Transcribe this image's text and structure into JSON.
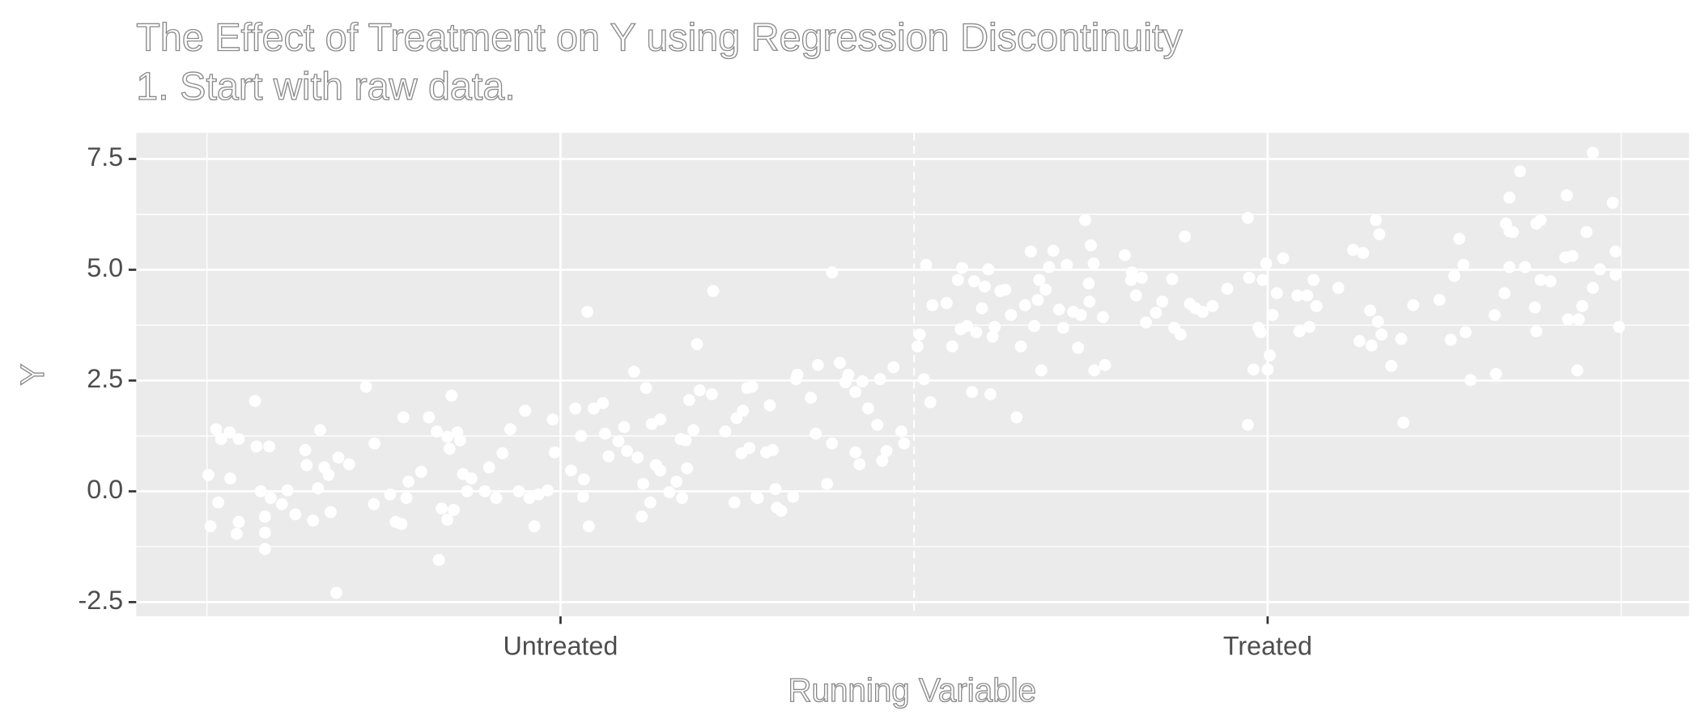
{
  "chart_data": {
    "type": "scatter",
    "title": "The Effect of Treatment on Y using Regression Discontinuity",
    "subtitle": "1. Start with raw data.",
    "x_label": "Running Variable",
    "y_label": "Y",
    "xlim": [
      -1.1,
      1.096
    ],
    "ylim": [
      -2.82,
      8.09
    ],
    "xticks": [
      {
        "value": -0.5,
        "label": "Untreated"
      },
      {
        "value": 0.5,
        "label": "Treated"
      }
    ],
    "yticks": [
      -2.5,
      {
        "value": 0,
        "label": "0.0"
      },
      2.5,
      {
        "value": 5,
        "label": "5.0"
      },
      7.5
    ],
    "x_minor_grid": [
      -1,
      0,
      1
    ],
    "cutoff": 0,
    "grid": true,
    "color": "#ffffff",
    "x": [
      -0.998,
      -0.995,
      -0.987,
      -0.984,
      -0.98,
      -0.968,
      -0.967,
      -0.958,
      -0.955,
      -0.955,
      -0.932,
      -0.93,
      -0.924,
      -0.918,
      -0.918,
      -0.912,
      -0.91,
      -0.918,
      -0.894,
      -0.886,
      -0.875,
      -0.861,
      -0.859,
      -0.85,
      -0.843,
      -0.84,
      -0.834,
      -0.828,
      -0.825,
      -0.817,
      -0.814,
      -0.799,
      -0.775,
      -0.764,
      -0.763,
      -0.741,
      -0.733,
      -0.725,
      -0.722,
      -0.718,
      -0.715,
      -0.697,
      -0.686,
      -0.675,
      -0.672,
      -0.668,
      -0.66,
      -0.657,
      -0.654,
      -0.66,
      -0.651,
      -0.646,
      -0.642,
      -0.638,
      -0.632,
      -0.626,
      -0.607,
      -0.601,
      -0.591,
      -0.582,
      -0.571,
      -0.559,
      -0.55,
      -0.544,
      -0.537,
      -0.531,
      -0.518,
      -0.511,
      -0.508,
      -0.485,
      -0.479,
      -0.471,
      -0.468,
      -0.467,
      -0.462,
      -0.46,
      -0.453,
      -0.44,
      -0.437,
      -0.432,
      -0.418,
      -0.41,
      -0.406,
      -0.396,
      -0.391,
      -0.385,
      -0.383,
      -0.379,
      -0.373,
      -0.371,
      -0.365,
      -0.359,
      -0.359,
      -0.346,
      -0.336,
      -0.33,
      -0.328,
      -0.323,
      -0.321,
      -0.318,
      -0.312,
      -0.307,
      -0.303,
      -0.286,
      -0.284,
      -0.267,
      -0.251,
      -0.254,
      -0.244,
      -0.242,
      -0.236,
      -0.229,
      -0.233,
      -0.223,
      -0.221,
      -0.209,
      -0.204,
      -0.2,
      -0.196,
      -0.194,
      -0.188,
      -0.171,
      -0.167,
      -0.165,
      -0.146,
      -0.136,
      -0.139,
      -0.123,
      -0.116,
      -0.116,
      -0.105,
      -0.097,
      -0.093,
      -0.083,
      -0.083,
      -0.077,
      -0.073,
      -0.065,
      -0.052,
      -0.048,
      -0.045,
      -0.039,
      -0.029,
      -0.018,
      -0.014,
      0.005,
      0.008,
      0.014,
      0.017,
      0.023,
      0.026,
      0.046,
      0.054,
      0.062,
      0.066,
      0.068,
      0.075,
      0.082,
      0.085,
      0.088,
      0.096,
      0.1,
      0.105,
      0.108,
      0.111,
      0.114,
      0.122,
      0.129,
      0.137,
      0.145,
      0.151,
      0.157,
      0.165,
      0.17,
      0.175,
      0.177,
      0.18,
      0.186,
      0.191,
      0.197,
      0.205,
      0.211,
      0.216,
      0.225,
      0.232,
      0.236,
      0.242,
      0.247,
      0.248,
      0.25,
      0.254,
      0.255,
      0.267,
      0.27,
      0.298,
      0.307,
      0.308,
      0.314,
      0.322,
      0.328,
      0.342,
      0.351,
      0.365,
      0.368,
      0.377,
      0.383,
      0.39,
      0.398,
      0.408,
      0.422,
      0.443,
      0.472,
      0.472,
      0.474,
      0.48,
      0.487,
      0.49,
      0.493,
      0.498,
      0.5,
      0.503,
      0.507,
      0.513,
      0.522,
      0.542,
      0.545,
      0.556,
      0.559,
      0.565,
      0.569,
      0.6,
      0.621,
      0.63,
      0.635,
      0.645,
      0.647,
      0.653,
      0.656,
      0.658,
      0.661,
      0.675,
      0.689,
      0.692,
      0.706,
      0.743,
      0.759,
      0.764,
      0.771,
      0.777,
      0.78,
      0.787,
      0.821,
      0.823,
      0.835,
      0.837,
      0.842,
      0.842,
      0.842,
      0.847,
      0.857,
      0.864,
      0.878,
      0.88,
      0.88,
      0.886,
      0.886,
      0.9,
      0.921,
      0.923,
      0.925,
      0.931,
      0.938,
      0.94,
      0.945,
      0.951,
      0.96,
      0.96,
      0.97,
      0.988,
      0.992,
      0.992,
      0.997
    ],
    "values": [
      0.37,
      -0.79,
      1.4,
      -0.25,
      1.18,
      1.33,
      0.29,
      -0.96,
      1.18,
      -0.69,
      2.04,
      1.01,
      0,
      -0.93,
      -1.3,
      1.01,
      -0.15,
      -0.57,
      -0.29,
      0.02,
      -0.52,
      0.93,
      0.59,
      -0.66,
      0.07,
      1.38,
      0.54,
      0.37,
      -0.47,
      -2.29,
      0.76,
      0.61,
      2.36,
      -0.29,
      1.08,
      -0.07,
      -0.69,
      -0.74,
      1.67,
      -0.15,
      0.22,
      0.44,
      1.67,
      1.35,
      -1.55,
      -0.39,
      1.23,
      0.96,
      2.16,
      -0.64,
      -0.42,
      1.33,
      1.15,
      0.39,
      0,
      0.29,
      0,
      0.54,
      -0.15,
      0.86,
      1.4,
      0,
      1.82,
      -0.15,
      -0.79,
      -0.07,
      0.02,
      1.62,
      0.88,
      0.47,
      1.87,
      1.25,
      -0.12,
      0.27,
      4.05,
      -0.79,
      1.87,
      1.99,
      1.3,
      0.79,
      1.13,
      1.45,
      0.91,
      2.7,
      0.76,
      -0.57,
      0.17,
      2.33,
      -0.25,
      1.52,
      0.59,
      1.62,
      0.47,
      -0.02,
      0.22,
      1.18,
      -0.15,
      1.15,
      0.52,
      2.06,
      1.38,
      3.32,
      2.28,
      2.19,
      4.52,
      1.35,
      1.65,
      -0.25,
      0.86,
      1.82,
      2.33,
      2.36,
      0.98,
      -0.12,
      -0.15,
      0.88,
      1.94,
      0.93,
      0.05,
      -0.37,
      -0.44,
      -0.12,
      2.53,
      2.63,
      2.11,
      2.85,
      1.3,
      0.17,
      1.08,
      4.94,
      2.9,
      2.46,
      2.63,
      0.88,
      2.24,
      0.61,
      2.48,
      1.87,
      1.5,
      2.53,
      0.69,
      0.91,
      2.8,
      1.35,
      1.08,
      3.27,
      3.54,
      2.53,
      5.11,
      2.01,
      4.2,
      4.25,
      3.27,
      4.77,
      3.66,
      5.04,
      3.73,
      2.24,
      4.74,
      3.59,
      4.13,
      4.62,
      5.01,
      2.19,
      3.49,
      3.71,
      4.52,
      4.55,
      3.98,
      1.67,
      3.27,
      4.2,
      5.41,
      3.73,
      4.32,
      4.77,
      2.73,
      4.55,
      5.06,
      5.43,
      4.1,
      3.69,
      5.11,
      4.05,
      3.24,
      3.98,
      6.12,
      4.69,
      4.28,
      5.55,
      5.14,
      2.73,
      3.93,
      2.85,
      5.33,
      4.77,
      4.94,
      4.42,
      4.82,
      3.81,
      4.03,
      4.28,
      4.79,
      3.69,
      3.54,
      5.75,
      4.23,
      4.13,
      4.05,
      4.18,
      4.57,
      6.17,
      1.5,
      4.82,
      2.75,
      3.69,
      3.59,
      4.77,
      5.14,
      2.75,
      3.07,
      3.98,
      4.47,
      5.26,
      4.42,
      3.61,
      4.42,
      3.71,
      4.77,
      4.18,
      4.59,
      5.45,
      3.39,
      5.38,
      4.08,
      3.29,
      6.12,
      3.83,
      5.8,
      3.54,
      2.83,
      3.44,
      1.55,
      4.2,
      4.32,
      3.42,
      4.86,
      5.7,
      5.11,
      3.59,
      2.51,
      3.98,
      2.65,
      4.47,
      6.04,
      5.87,
      6.63,
      5.06,
      5.85,
      7.22,
      5.06,
      4.15,
      3.61,
      6.04,
      6.12,
      4.77,
      4.74,
      5.28,
      6.68,
      3.88,
      5.31,
      2.73,
      3.88,
      4.18,
      5.85,
      7.64,
      4.59,
      5.01,
      6.51,
      5.41,
      4.89,
      3.71
    ]
  }
}
